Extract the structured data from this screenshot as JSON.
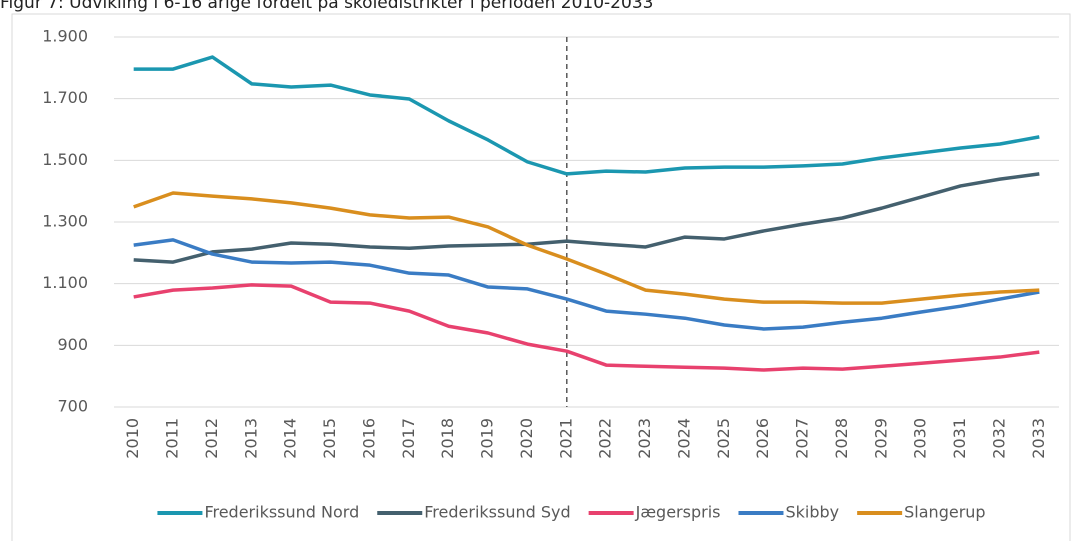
{
  "chart_data": {
    "type": "line",
    "title": "Figur 7: Udvikling i 6-16 årige fordelt på skoledistrikter i perioden 2010-2033",
    "categories": [
      "2010",
      "2011",
      "2012",
      "2013",
      "2014",
      "2015",
      "2016",
      "2017",
      "2018",
      "2019",
      "2020",
      "2021",
      "2022",
      "2023",
      "2024",
      "2025",
      "2026",
      "2027",
      "2028",
      "2029",
      "2030",
      "2031",
      "2032",
      "2033"
    ],
    "series": [
      {
        "name": "Frederikssund Nord",
        "color": "#1b97b0",
        "values": [
          1796,
          1796,
          1835,
          1748,
          1738,
          1744,
          1712,
          1699,
          1628,
          1566,
          1495,
          1456,
          1465,
          1462,
          1475,
          1478,
          1478,
          1482,
          1488,
          1508,
          1524,
          1540,
          1553,
          1576
        ]
      },
      {
        "name": "Frederikssund Syd",
        "color": "#44606e",
        "values": [
          1177,
          1170,
          1203,
          1212,
          1232,
          1228,
          1219,
          1215,
          1222,
          1225,
          1228,
          1238,
          1228,
          1219,
          1251,
          1245,
          1271,
          1293,
          1313,
          1345,
          1381,
          1417,
          1439,
          1456
        ]
      },
      {
        "name": "Jægerspris",
        "color": "#e8416e",
        "values": [
          1057,
          1079,
          1086,
          1096,
          1092,
          1040,
          1037,
          1011,
          962,
          940,
          904,
          881,
          836,
          832,
          829,
          826,
          820,
          826,
          823,
          832,
          842,
          852,
          862,
          878
        ]
      },
      {
        "name": "Skibby",
        "color": "#3a7cc4",
        "values": [
          1225,
          1242,
          1196,
          1170,
          1167,
          1170,
          1160,
          1134,
          1128,
          1089,
          1083,
          1050,
          1011,
          1001,
          988,
          966,
          953,
          959,
          975,
          988,
          1008,
          1027,
          1050,
          1073
        ]
      },
      {
        "name": "Slangerup",
        "color": "#d98e1e",
        "values": [
          1349,
          1394,
          1384,
          1375,
          1362,
          1345,
          1323,
          1313,
          1316,
          1284,
          1225,
          1180,
          1131,
          1079,
          1066,
          1050,
          1040,
          1040,
          1037,
          1037,
          1050,
          1063,
          1073,
          1079
        ]
      }
    ],
    "ylim": [
      700,
      1900
    ],
    "yticks": [
      700,
      900,
      {
        "value": 1100,
        "label": "1.100"
      },
      {
        "value": 1300,
        "label": "1.300"
      },
      {
        "value": 1500,
        "label": "1.500"
      },
      {
        "value": 1700,
        "label": "1.700"
      },
      {
        "value": 1900,
        "label": "1.900"
      }
    ],
    "grid": true,
    "vline_x": "2021",
    "legend": "bottom"
  }
}
